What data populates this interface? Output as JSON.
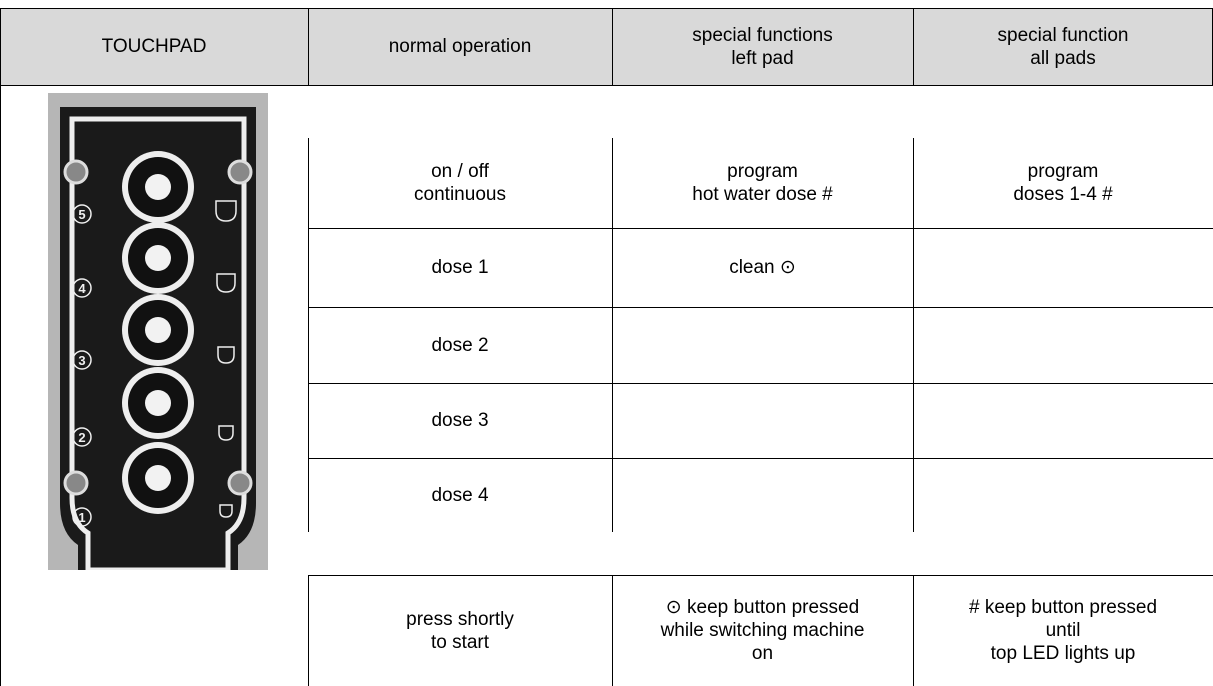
{
  "header": {
    "cells": [
      [
        "TOUCHPAD"
      ],
      [
        "normal operation"
      ],
      [
        "special functions",
        "left pad"
      ],
      [
        "special function",
        "all pads"
      ]
    ]
  },
  "touchpad_labels": [
    "5",
    "4",
    "3",
    "2",
    "1"
  ],
  "rows": [
    {
      "normal": [
        "on / off",
        "continuous"
      ],
      "left": [
        "program",
        "hot water dose #"
      ],
      "all": [
        "program",
        "doses 1-4 #"
      ]
    },
    {
      "normal": [
        "dose 1"
      ],
      "left": [
        "clean ⊙"
      ]
    },
    {
      "normal": [
        "dose 2"
      ]
    },
    {
      "normal": [
        "dose 3"
      ]
    },
    {
      "normal": [
        "dose 4"
      ]
    }
  ],
  "footer": {
    "normal": [
      "press shortly",
      "to start"
    ],
    "left": [
      "⊙ keep button pressed",
      "while switching machine",
      "on"
    ],
    "all": [
      "# keep button pressed",
      "until",
      "top LED lights up"
    ]
  }
}
